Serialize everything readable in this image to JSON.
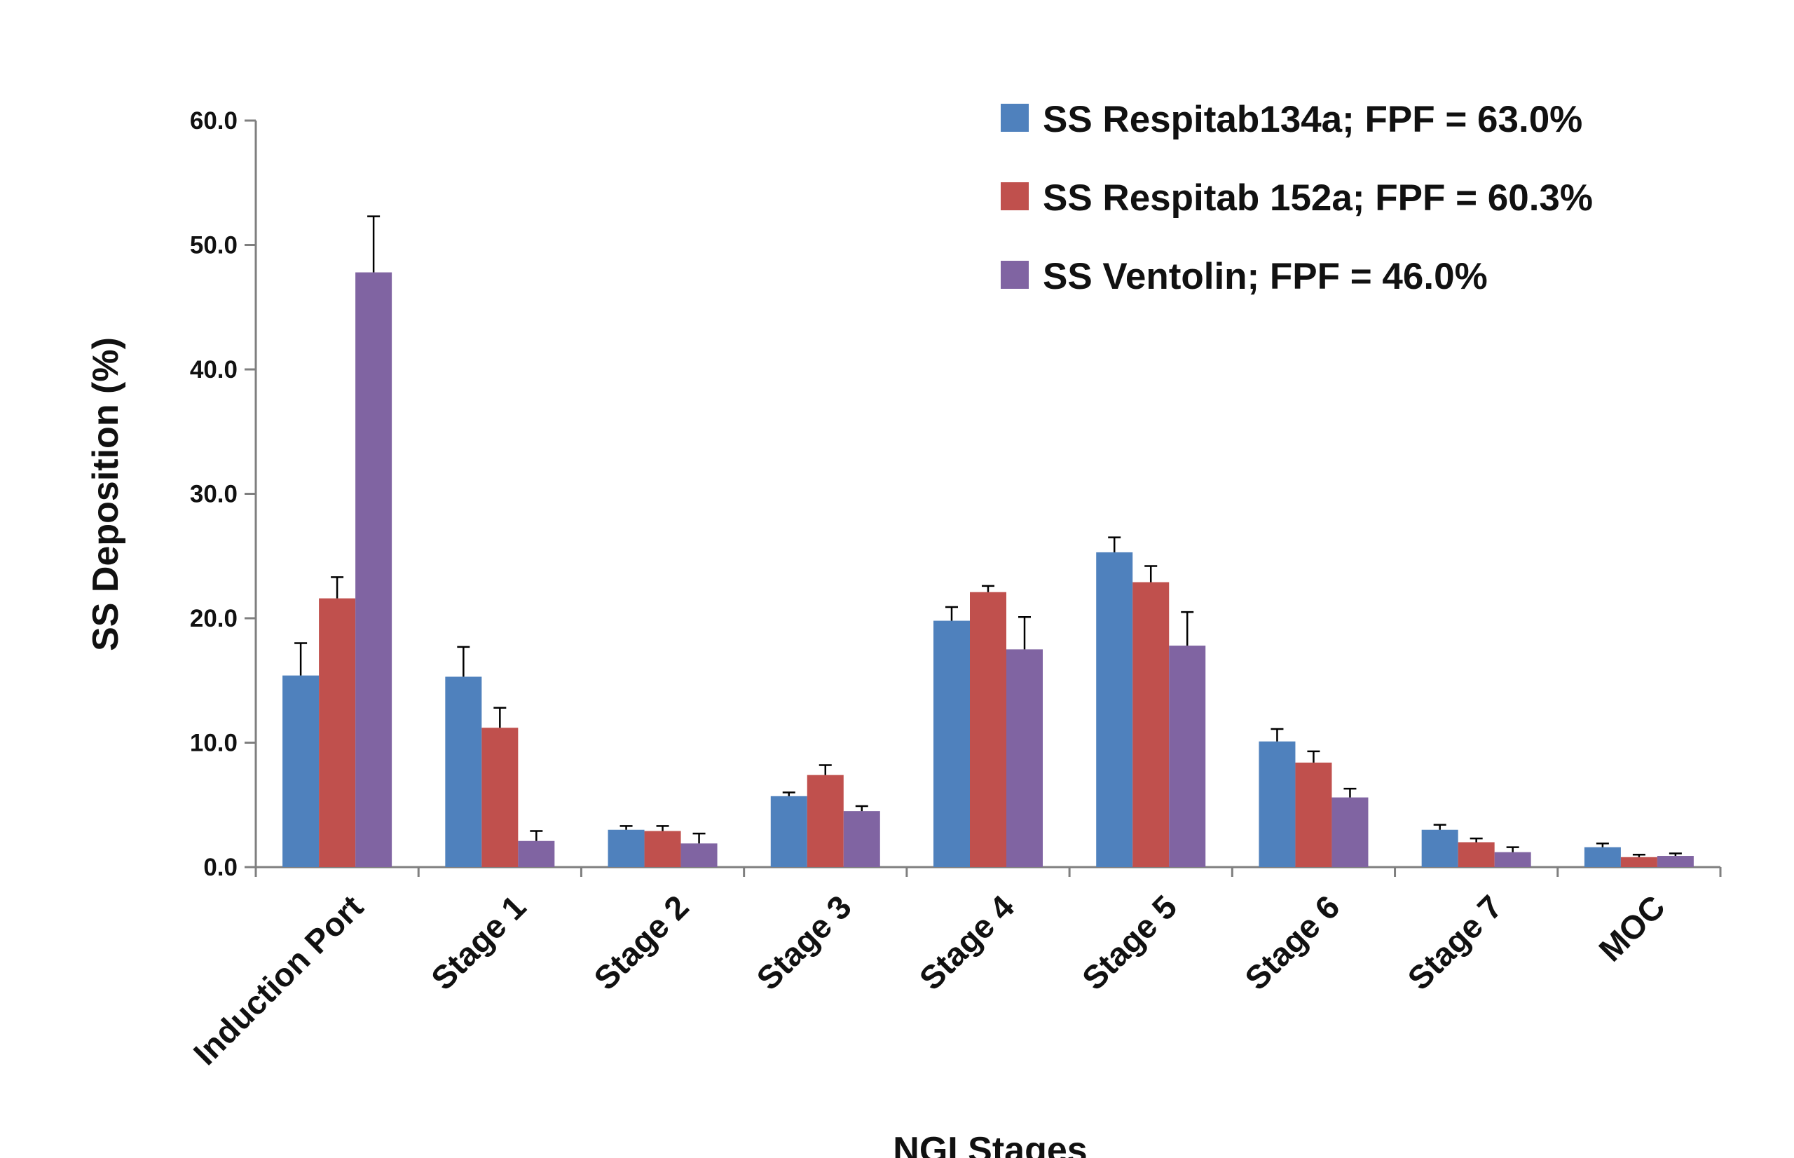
{
  "chart_data": {
    "type": "bar",
    "title": "",
    "xlabel": "NGI Stages",
    "ylabel": "SS Deposition (%)",
    "ylim": [
      0,
      60
    ],
    "yticks": [
      "0.0",
      "10.0",
      "20.0",
      "30.0",
      "40.0",
      "50.0",
      "60.0"
    ],
    "categories": [
      "Induction Port",
      "Stage 1",
      "Stage 2",
      "Stage 3",
      "Stage 4",
      "Stage 5",
      "Stage 6",
      "Stage 7",
      "MOC"
    ],
    "series": [
      {
        "name": "SS Respitab134a; FPF = 63.0%",
        "color": "#4f81bd",
        "values": [
          15.4,
          15.3,
          3.0,
          5.7,
          19.8,
          25.3,
          10.1,
          3.0,
          1.6
        ],
        "error": [
          2.6,
          2.4,
          0.3,
          0.3,
          1.1,
          1.2,
          1.0,
          0.4,
          0.3
        ]
      },
      {
        "name": "SS Respitab 152a; FPF = 60.3%",
        "color": "#c0504d",
        "values": [
          21.6,
          11.2,
          2.9,
          7.4,
          22.1,
          22.9,
          8.4,
          2.0,
          0.8
        ],
        "error": [
          1.7,
          1.6,
          0.4,
          0.8,
          0.5,
          1.3,
          0.9,
          0.3,
          0.2
        ]
      },
      {
        "name": "SS Ventolin; FPF = 46.0%",
        "color": "#8064a2",
        "values": [
          47.8,
          2.1,
          1.9,
          4.5,
          17.5,
          17.8,
          5.6,
          1.2,
          0.9
        ],
        "error": [
          4.5,
          0.8,
          0.8,
          0.4,
          2.6,
          2.7,
          0.7,
          0.4,
          0.2
        ]
      }
    ],
    "legend": {
      "position": "top-right"
    },
    "grid": false,
    "error_bars": true
  }
}
